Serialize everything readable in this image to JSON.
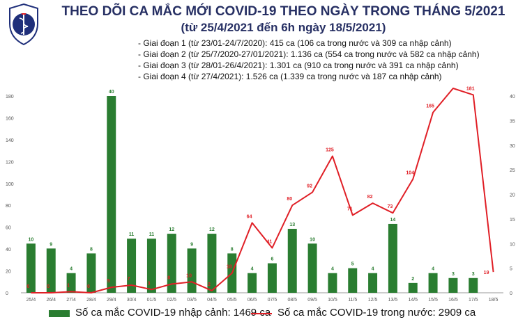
{
  "title": {
    "line1": "THEO DÕI CA MẮC MỚI COVID-19 THEO NGÀY TRONG THÁNG 5/2021",
    "line2": "(từ 25/4/2021 đến 6h ngày 18/5/2021)"
  },
  "notes": [
    "Giai đoạn 1 (từ 23/01-24/7/2020): 415 ca (106 ca trong nước và 309 ca nhập cảnh)",
    "Giai đoạn 2 (từ 25/7/2020-27/01/2021): 1.136 ca (554 ca trong nước và 582 ca nhập cảnh)",
    "Giai đoạn 3 (từ 28/01-26/4/2021): 1.301 ca (910 ca trong nước và 391 ca nhập cảnh)",
    "Giai đoạn 4 (từ 27/4/2021): 1.526 ca (1.339 ca trong nước và 187 ca nhập cảnh)"
  ],
  "colors": {
    "bar": "#2a7d31",
    "line": "#e01f26",
    "title": "#262f63",
    "axis": "#555555"
  },
  "chart_data": {
    "type": "bar+line",
    "categories": [
      "25/4",
      "26/4",
      "27/4",
      "28/4",
      "29/4",
      "30/4",
      "01/5",
      "02/5",
      "03/5",
      "04/5",
      "05/5",
      "06/5",
      "07/5",
      "08/5",
      "09/5",
      "10/5",
      "11/5",
      "12/5",
      "13/5",
      "14/5",
      "15/5",
      "16/5",
      "17/5",
      "18/5"
    ],
    "series": [
      {
        "name": "Số ca mắc COVID-19 nhập cảnh: 1469 ca",
        "type": "bar",
        "axis": "right",
        "values": [
          10,
          9,
          4,
          8,
          40,
          11,
          11,
          12,
          9,
          12,
          8,
          4,
          6,
          13,
          10,
          4,
          5,
          4,
          14,
          2,
          4,
          3,
          3,
          null
        ]
      },
      {
        "name": "Số ca mắc COVID-19 trong nước: 2909 ca",
        "type": "line",
        "axis": "left",
        "values": [
          0,
          0,
          1,
          0,
          5,
          7,
          3,
          8,
          10,
          2,
          18,
          64,
          41,
          80,
          92,
          125,
          71,
          82,
          73,
          104,
          165,
          187,
          181,
          19
        ]
      }
    ],
    "ylim_left": [
      0,
      180
    ],
    "yticks_left": [
      0,
      20,
      40,
      60,
      80,
      100,
      120,
      140,
      160,
      180
    ],
    "ylim_right": [
      0,
      40
    ],
    "yticks_right": [
      0,
      5,
      10,
      15,
      20,
      25,
      30,
      35,
      40
    ],
    "grid": false,
    "legend": "bottom"
  }
}
